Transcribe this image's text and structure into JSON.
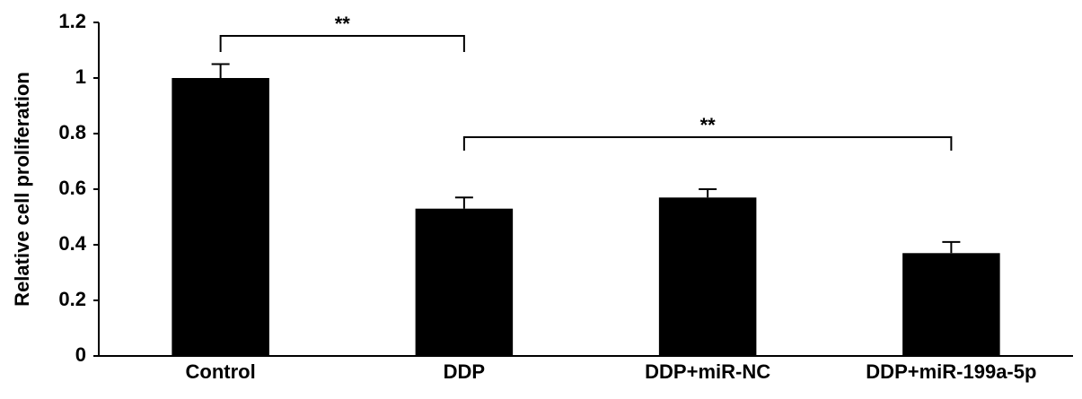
{
  "chart_data": {
    "type": "bar",
    "y_label": "Relative cell proliferation",
    "categories": [
      "Control",
      "DDP",
      "DDP+miR-NC",
      "DDP+miR-199a-5p"
    ],
    "values": [
      1.0,
      0.53,
      0.57,
      0.37
    ],
    "errors": [
      0.05,
      0.04,
      0.03,
      0.04
    ],
    "color": "#000000",
    "ylim": [
      0,
      1.2
    ],
    "yticks": [
      0,
      0.2,
      0.4,
      0.6,
      0.8,
      1,
      1.2
    ],
    "grid": false,
    "annotations": [
      "**",
      "**"
    ]
  }
}
